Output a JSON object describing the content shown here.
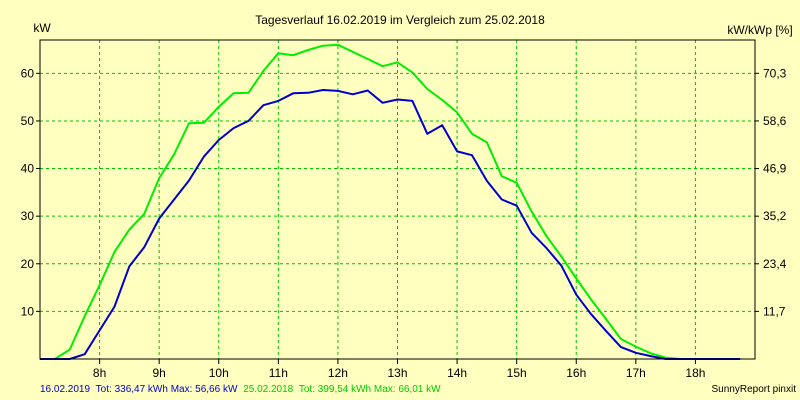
{
  "chart_data": {
    "type": "line",
    "title": "Tagesverlauf 16.02.2019 im Vergleich zum 25.02.2018",
    "ylabel_left": "kW",
    "ylabel_right": "kW/kWp [%]",
    "xlim": [
      7,
      19
    ],
    "ylim": [
      0,
      67
    ],
    "y_ticks": [
      10,
      20,
      30,
      40,
      50,
      60
    ],
    "y_ticks_right": [
      "11,7",
      "23,4",
      "35,2",
      "46,9",
      "58,6",
      "70,3"
    ],
    "x_tick_values": [
      8,
      9,
      10,
      11,
      12,
      13,
      14,
      15,
      16,
      17,
      18
    ],
    "x_tick_labels": [
      "8h",
      "9h",
      "10h",
      "11h",
      "12h",
      "13h",
      "14h",
      "15h",
      "16h",
      "17h",
      "18h"
    ],
    "grid": true,
    "colors": {
      "background": "#ffffc0",
      "grid": "#00c000",
      "plot_border": "#000000"
    },
    "series": [
      {
        "name": "16.02.2019",
        "color": "#0000cc",
        "x": [
          7.0,
          7.25,
          7.5,
          7.75,
          8.0,
          8.25,
          8.5,
          8.75,
          9.0,
          9.25,
          9.5,
          9.75,
          10.0,
          10.25,
          10.5,
          10.75,
          11.0,
          11.25,
          11.5,
          11.75,
          12.0,
          12.25,
          12.5,
          12.75,
          13.0,
          13.25,
          13.5,
          13.75,
          14.0,
          14.25,
          14.5,
          14.75,
          15.0,
          15.25,
          15.5,
          15.75,
          16.0,
          16.25,
          16.5,
          16.75,
          17.0,
          17.25,
          17.5,
          17.75,
          18.0,
          18.25,
          18.5,
          18.75
        ],
        "y": [
          0,
          0,
          0,
          1,
          6,
          11,
          19.5,
          23.5,
          29.5,
          33.5,
          37.5,
          42.5,
          46,
          48.5,
          50,
          53.3,
          54.2,
          55.8,
          55.9,
          56.5,
          56.3,
          55.6,
          56.4,
          53.8,
          54.5,
          54.2,
          47.3,
          49.1,
          43.6,
          42.8,
          37.4,
          33.5,
          32.2,
          26.5,
          23.3,
          19.6,
          13.5,
          9.4,
          5.9,
          2.5,
          1.3,
          0.6,
          0,
          0,
          0,
          0,
          0,
          0
        ]
      },
      {
        "name": "25.02.2018",
        "color": "#00ee00",
        "x": [
          7.0,
          7.25,
          7.5,
          7.75,
          8.0,
          8.25,
          8.5,
          8.75,
          9.0,
          9.25,
          9.5,
          9.75,
          10.0,
          10.25,
          10.5,
          10.75,
          11.0,
          11.25,
          11.5,
          11.75,
          12.0,
          12.25,
          12.5,
          12.75,
          13.0,
          13.25,
          13.5,
          13.75,
          14.0,
          14.25,
          14.5,
          14.75,
          15.0,
          15.25,
          15.5,
          15.75,
          16.0,
          16.25,
          16.5,
          16.75,
          17.0,
          17.25,
          17.5,
          17.75,
          18.0,
          18.25,
          18.5,
          18.75
        ],
        "y": [
          0,
          0,
          2,
          9,
          15.5,
          22.5,
          27.2,
          30.5,
          38,
          43,
          49.5,
          49.6,
          53,
          55.8,
          55.9,
          60.5,
          64.2,
          63.8,
          64.9,
          65.8,
          66,
          64.5,
          63,
          61.5,
          62.3,
          60.2,
          56.7,
          54.4,
          51.8,
          47.3,
          45.5,
          38.4,
          37,
          31,
          25.8,
          21.5,
          16.9,
          12.5,
          8.4,
          4.2,
          2.6,
          1.2,
          0.3,
          0,
          0,
          0,
          0,
          0
        ]
      }
    ]
  },
  "legend": {
    "s1_date": "16.02.2019",
    "s1_stats": "Tot: 336,47 kWh Max: 56,66 kW",
    "s2_date": "25.02.2018",
    "s2_stats": "Tot: 399,54 kWh Max: 66,01 kW",
    "credit": "SunnyReport pinxit"
  }
}
